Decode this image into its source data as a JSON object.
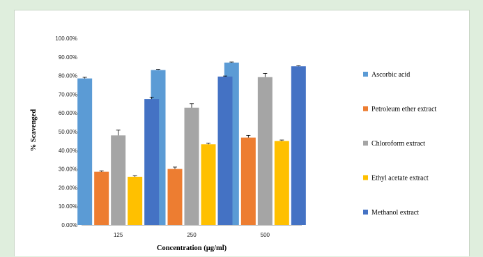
{
  "chart_data": {
    "type": "bar",
    "title": "",
    "xlabel": "Concentration (µg/ml)",
    "ylabel": "% Scavenged",
    "categories": [
      "125",
      "250",
      "500"
    ],
    "ylim": [
      0,
      100
    ],
    "yticks": [
      "0.00%",
      "10.00%",
      "20.00%",
      "30.00%",
      "40.00%",
      "50.00%",
      "60.00%",
      "70.00%",
      "80.00%",
      "90.00%",
      "100.00%"
    ],
    "legend_position": "right",
    "grid": false,
    "series": [
      {
        "name": "Ascorbic acid",
        "color": "#5b9bd5",
        "values": [
          78.5,
          83.0,
          87.0
        ],
        "errors": [
          0.6,
          0.4,
          0.3
        ]
      },
      {
        "name": "Petroleum ether extract",
        "color": "#ed7d31",
        "values": [
          28.5,
          30.0,
          46.8
        ],
        "errors": [
          0.5,
          1.0,
          1.2
        ]
      },
      {
        "name": "Chloroform extract",
        "color": "#a5a5a5",
        "values": [
          48.0,
          62.8,
          79.2
        ],
        "errors": [
          2.8,
          2.2,
          2.0
        ]
      },
      {
        "name": "Ethyl acetate extract",
        "color": "#ffc000",
        "values": [
          25.8,
          43.2,
          45.0
        ],
        "errors": [
          0.6,
          0.7,
          0.5
        ]
      },
      {
        "name": "Methanol extract",
        "color": "#4472c4",
        "values": [
          67.5,
          79.5,
          85.0
        ],
        "errors": [
          1.0,
          0.3,
          0.3
        ]
      }
    ]
  }
}
